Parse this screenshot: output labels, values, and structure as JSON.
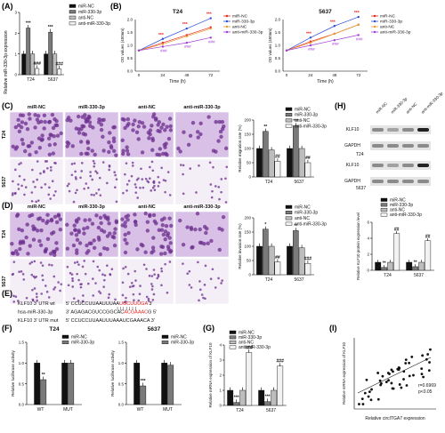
{
  "colors": {
    "miR_NC": "#111111",
    "miR_330_3p": "#7a7a7a",
    "anti_NC": "#bdbdbd",
    "anti_miR_330_3p": "#f2f2f2",
    "red": "#e8231b",
    "blue": "#2a4bd8",
    "orange": "#e89a2a",
    "purple": "#a23bd6",
    "stain_dark": "#6b2d8e",
    "stain_light": "#d9c0e6"
  },
  "legend4": [
    "miR-NC",
    "miR-330-3p",
    "anti-NC",
    "anti-miR-330-3p"
  ],
  "legend2": [
    "miR-NC",
    "miR-330-3p"
  ],
  "groups": [
    "T24",
    "5637"
  ],
  "panels": {
    "A": {
      "label": "(A)",
      "ylabel": "Relative miR-330-3p expression",
      "ymax": 3,
      "ticks": [
        "0",
        "1",
        "2",
        "3"
      ],
      "values": [
        [
          1.0,
          2.25,
          1.0,
          0.3
        ],
        [
          1.0,
          2.05,
          1.0,
          0.28
        ]
      ],
      "sig": [
        [
          "",
          "***",
          "",
          "###"
        ],
        [
          "",
          "***",
          "",
          "###"
        ]
      ]
    },
    "B": {
      "label": "(B)",
      "x_label": "Time (h)",
      "y_label": "OD values (450nm)",
      "xticks": [
        "0",
        "24",
        "48",
        "72"
      ],
      "yticks": [
        "0.0",
        "0.5",
        "1.0",
        "1.5",
        "2.0"
      ],
      "charts": [
        {
          "title": "T24",
          "series": [
            [
              0.8,
              1.1,
              1.4,
              1.7
            ],
            [
              0.8,
              1.25,
              1.65,
              2.05
            ],
            [
              0.8,
              1.05,
              1.35,
              1.65
            ],
            [
              0.8,
              0.95,
              1.1,
              1.3
            ]
          ],
          "sig": [
            "***",
            "***",
            "***"
          ],
          "sig2": [
            "###",
            "###",
            "###"
          ]
        },
        {
          "title": "5637",
          "series": [
            [
              0.8,
              1.15,
              1.45,
              1.8
            ],
            [
              0.8,
              1.3,
              1.75,
              2.1
            ],
            [
              0.8,
              1.1,
              1.45,
              1.8
            ],
            [
              0.8,
              1.0,
              1.2,
              1.4
            ]
          ],
          "sig": [
            "***",
            "***",
            "***"
          ],
          "sig2": [
            "###",
            "###",
            "###"
          ]
        }
      ]
    },
    "C": {
      "label": "(C)",
      "cols": [
        "miR-NC",
        "miR-330-3p",
        "anti-NC",
        "anti-miR-330-3p"
      ],
      "rows": [
        "T24",
        "5637"
      ],
      "ylabel": "Relative migration rate (%)",
      "yticks": [
        "0",
        "50",
        "100",
        "150",
        "200"
      ],
      "ymax": 200,
      "values": [
        [
          100,
          160,
          95,
          55
        ],
        [
          100,
          180,
          100,
          50
        ]
      ],
      "sig": [
        [
          "",
          "**",
          "",
          "##"
        ],
        [
          "",
          "***",
          "",
          "##"
        ]
      ]
    },
    "D": {
      "label": "(D)",
      "cols": [
        "miR-NC",
        "miR-330-3p",
        "anti-NC",
        "anti-miR-330-3p"
      ],
      "rows": [
        "T24",
        "5637"
      ],
      "ylabel": "Relative invasion rate (%)",
      "yticks": [
        "0",
        "50",
        "100",
        "150",
        "200"
      ],
      "ymax": 200,
      "values": [
        [
          100,
          160,
          100,
          45
        ],
        [
          100,
          155,
          95,
          40
        ]
      ],
      "sig": [
        [
          "",
          "*",
          "",
          "##"
        ],
        [
          "",
          "**",
          "",
          "###"
        ]
      ]
    },
    "E": {
      "label": "(E)",
      "rows": [
        {
          "name": "KLF10 3' UTR wt",
          "pre": "5' CCUCCUUAAUUUAA",
          "hl": "UGCUUUGA",
          "post": " 3'",
          "hlcolor": "#e8231b"
        },
        {
          "name": "hsa-miR-330-3p",
          "pre": "3' AGAGACGUCCGGCAC",
          "hl": "ACGAAAC",
          "post": "G 5'",
          "hlcolor": "#e8231b"
        },
        {
          "name": "KLF10 3' UTR mut",
          "pre": "5' CCUCCUUAAUUUAAAUCGAAACA 3'",
          "hl": "",
          "post": "",
          "hlcolor": "#e8231b"
        }
      ]
    },
    "F": {
      "label": "(F)",
      "ylabel": "Relative luciferase activity",
      "cats": [
        "WT",
        "MUT"
      ],
      "yticks": [
        "0.0",
        "0.5",
        "1.0",
        "1.5"
      ],
      "ymax": 1.5,
      "charts": [
        {
          "title": "T24",
          "values": [
            [
              1.0,
              0.6
            ],
            [
              1.0,
              1.0
            ]
          ],
          "sig": [
            [
              "",
              "**"
            ],
            [
              "",
              ""
            ]
          ]
        },
        {
          "title": "5637",
          "values": [
            [
              1.0,
              0.45
            ],
            [
              1.0,
              0.95
            ]
          ],
          "sig": [
            [
              "",
              "***"
            ],
            [
              "",
              ""
            ]
          ]
        }
      ]
    },
    "G": {
      "label": "(G)",
      "ylabel": "Relative mRNA expression of KLF10",
      "yticks": [
        "0",
        "1",
        "2",
        "3",
        "4"
      ],
      "ymax": 4,
      "values": [
        [
          1.0,
          0.2,
          1.0,
          3.5
        ],
        [
          1.0,
          0.25,
          1.0,
          2.6
        ]
      ],
      "sig": [
        [
          "",
          "***",
          "",
          "###"
        ],
        [
          "",
          "***",
          "",
          "###"
        ]
      ]
    },
    "H": {
      "label": "(H)",
      "lanes": [
        "miR-NC",
        "miR-330-3p",
        "anti-NC",
        "anti-miR-330-3p"
      ],
      "bands": [
        "KLF10",
        "GAPDH",
        "KLF10",
        "GAPDH"
      ],
      "cell_labels": [
        "T24",
        "5637"
      ],
      "ylabel": "Relative KLF10 protein expression level",
      "yticks": [
        "0",
        "2",
        "4",
        "6"
      ],
      "ymax": 6,
      "values": [
        [
          1.0,
          0.35,
          1.0,
          4.6
        ],
        [
          1.0,
          0.45,
          1.0,
          3.7
        ]
      ],
      "sig": [
        [
          "",
          "**",
          "",
          "##"
        ],
        [
          "",
          "**",
          "",
          "##"
        ]
      ]
    },
    "I": {
      "label": "(I)",
      "xlabel": "Relative circITGA7 expression",
      "ylabel": "Relative mRNA expression of KLF10",
      "r": "r=0.6969",
      "p": "p<0.05",
      "xticks": [
        "0.00",
        "0.02",
        "0.04",
        "0.06",
        "0.08"
      ],
      "yticks": [
        "0.0",
        "0.2",
        "0.4",
        "0.6",
        "0.8",
        "1.0"
      ]
    }
  }
}
